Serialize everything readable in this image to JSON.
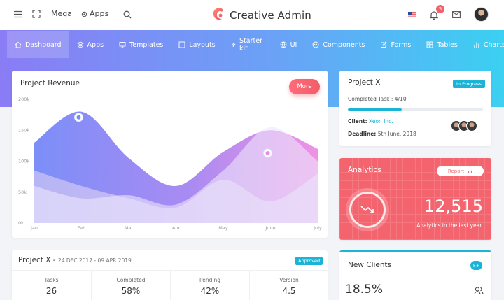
{
  "topbar": {
    "menu_icon": "menu-icon",
    "fullscreen_icon": "fullscreen-icon",
    "mega_label": "Mega",
    "apps_label": "Apps",
    "search_icon": "search-icon",
    "brand_name": "Creative Admin",
    "notification_count": "5"
  },
  "nav": {
    "items": [
      {
        "label": "Dashboard",
        "icon": "home-icon"
      },
      {
        "label": "Apps",
        "icon": "layers-icon"
      },
      {
        "label": "Templates",
        "icon": "monitor-icon"
      },
      {
        "label": "Layouts",
        "icon": "layout-icon"
      },
      {
        "label": "Starter kit",
        "icon": "bolt-icon"
      },
      {
        "label": "UI",
        "icon": "globe-icon"
      },
      {
        "label": "Components",
        "icon": "components-icon"
      },
      {
        "label": "Forms",
        "icon": "edit-icon"
      },
      {
        "label": "Tables",
        "icon": "grid-icon"
      },
      {
        "label": "Charts",
        "icon": "bar-chart-icon"
      }
    ]
  },
  "revenue": {
    "title": "Project Revenue",
    "more_label": "More"
  },
  "chart_data": {
    "type": "area",
    "title": "Project Revenue",
    "categories": [
      "Jan",
      "Feb",
      "Mar",
      "Apr",
      "May",
      "June",
      "July"
    ],
    "y_ticks": [
      "0k",
      "50k",
      "100k",
      "150k",
      "200k"
    ],
    "ylim": [
      0,
      200
    ],
    "series": [
      {
        "values": [
          130,
          180,
          105,
          60,
          115,
          150,
          120
        ],
        "color": "#6f8ef7"
      },
      {
        "values": [
          85,
          60,
          40,
          25,
          70,
          35,
          80
        ],
        "color": "#b9a6f4"
      }
    ],
    "grid": false
  },
  "projectx": {
    "title": "Project X",
    "status": "In Progress",
    "completed_label": "Completed Task : 4/10",
    "completed_fraction": 0.4,
    "client_label": "Client:",
    "client_value": "Xeon Inc.",
    "deadline_label": "Deadline:",
    "deadline_value": "5th June, 2018"
  },
  "analytics": {
    "title": "Analytics",
    "report_label": "Report",
    "value": "12,515",
    "subtitle": "Analytics in the last year."
  },
  "project_bottom": {
    "title": "Project X -",
    "dates": "24 DEC 2017 - 09 APR 2019",
    "status": "Approved",
    "stats": [
      {
        "label": "Tasks",
        "value": "26"
      },
      {
        "label": "Completed",
        "value": "58%"
      },
      {
        "label": "Pending",
        "value": "42%"
      },
      {
        "label": "Version",
        "value": "4.5"
      }
    ]
  },
  "clients": {
    "title": "New Clients",
    "badge": "5+",
    "percent": "18.5%"
  },
  "colors": {
    "accent": "#1cb4d6",
    "analytics": "#f4646e",
    "gradient_start": "#8a7cf5",
    "gradient_end": "#3bd0f2"
  }
}
